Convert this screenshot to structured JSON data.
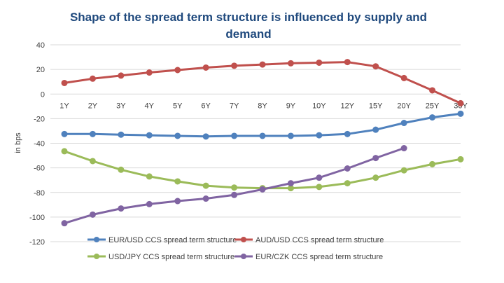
{
  "chart_data": {
    "type": "line",
    "title_line1": "Shape of the spread term structure is influenced by supply and",
    "title_line2": "demand",
    "xlabel": "",
    "ylabel": "in bps",
    "categories": [
      "1Y",
      "2Y",
      "3Y",
      "4Y",
      "5Y",
      "6Y",
      "7Y",
      "8Y",
      "9Y",
      "10Y",
      "12Y",
      "15Y",
      "20Y",
      "25Y",
      "30Y"
    ],
    "ylim": [
      -120,
      40
    ],
    "yticks": [
      40,
      20,
      0,
      -20,
      -40,
      -60,
      -80,
      -100,
      -120
    ],
    "grid": "horizontal",
    "legend_position": "bottom",
    "series": [
      {
        "name": "EUR/USD CCS spread term structure",
        "color": "#4f81bd",
        "values": [
          -32.5,
          -32.5,
          -33,
          -33.5,
          -34,
          -34.5,
          -34,
          -34,
          -34,
          -33.5,
          -32.5,
          -29,
          -23.5,
          -19,
          -16
        ]
      },
      {
        "name": "AUD/USD CCS spread term structure",
        "color": "#c0504d",
        "values": [
          9,
          12.5,
          15,
          17.5,
          19.5,
          21.5,
          23,
          24,
          25,
          25.5,
          26,
          22.5,
          13,
          3,
          -7.5
        ]
      },
      {
        "name": "USD/JPY CCS spread term structure",
        "color": "#9bbb59",
        "values": [
          -46.5,
          -54.5,
          -61.5,
          -67,
          -71,
          -74.5,
          -76,
          -76.5,
          -76.5,
          -75.5,
          -72.5,
          -68,
          -62,
          -57,
          -53
        ]
      },
      {
        "name": "EUR/CZK CCS spread term structure",
        "color": "#8064a2",
        "values": [
          -105,
          -98,
          -93,
          -89.5,
          -87,
          -85,
          -82,
          -77.5,
          -72.5,
          -68,
          -60.5,
          -52,
          -44,
          null,
          null
        ]
      }
    ]
  }
}
